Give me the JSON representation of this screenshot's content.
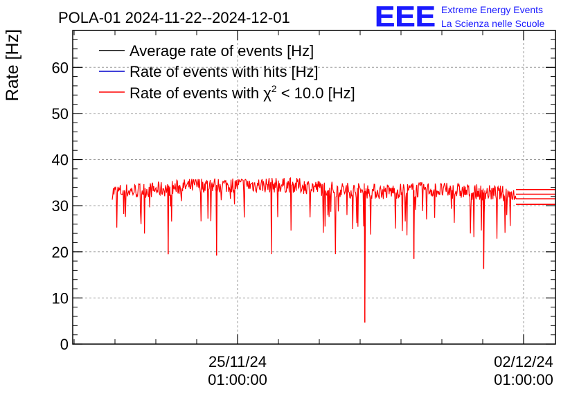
{
  "header": {
    "title": "POLA-01 2024-11-22--2024-12-01",
    "logo_text": "EEE",
    "org_line1": "Extreme Energy Events",
    "org_line2": "La Scienza nelle Scuole"
  },
  "colors": {
    "average": "#000000",
    "hits": "#0000cc",
    "chi2": "#ff0000",
    "logo": "#1a1aff",
    "grid": "#9a9a9a"
  },
  "chart_data": {
    "type": "line",
    "title": "POLA-01 2024-11-22--2024-12-01",
    "ylabel": "Rate [Hz]",
    "xlabel": "",
    "ylim": [
      0,
      68
    ],
    "yticks": [
      "0",
      "10",
      "20",
      "30",
      "40",
      "50",
      "60"
    ],
    "xticks": [
      {
        "date": "25/11/24",
        "time": "01:00:00"
      },
      {
        "date": "02/12/24",
        "time": "01:00:00"
      }
    ],
    "grid": true,
    "legend_position": "top-left",
    "legend": [
      {
        "label": "Average rate of events [Hz]",
        "color": "#000000"
      },
      {
        "label": "Rate of events with hits [Hz]",
        "color": "#0000cc"
      },
      {
        "label_prefix": "Rate of events with ",
        "label_symbol": "χ",
        "label_sup": "2",
        "label_suffix": " < 10.0 [Hz]",
        "color": "#ff0000"
      }
    ],
    "series": [
      {
        "name": "Rate of events with χ2 < 10.0 [Hz]",
        "color": "#ff0000",
        "baseline_mean": [
          33,
          33.5,
          34.5,
          34.5,
          34.5,
          33.5,
          33,
          33.5,
          33,
          32.5
        ],
        "typical_band": [
          30.5,
          36
        ],
        "dips": [
          {
            "x": "23/11/24",
            "value": 19.5
          },
          {
            "x": "24/11/24",
            "value": 19.2
          },
          {
            "x": "26/11/24",
            "value": 19.5
          },
          {
            "x": "27/11/24",
            "value": 19.5
          },
          {
            "x": "27/11/24",
            "value": 4.7
          },
          {
            "x": "29/11/24",
            "value": 18.5
          },
          {
            "x": "01/12/24",
            "value": 16.3
          }
        ]
      }
    ]
  }
}
